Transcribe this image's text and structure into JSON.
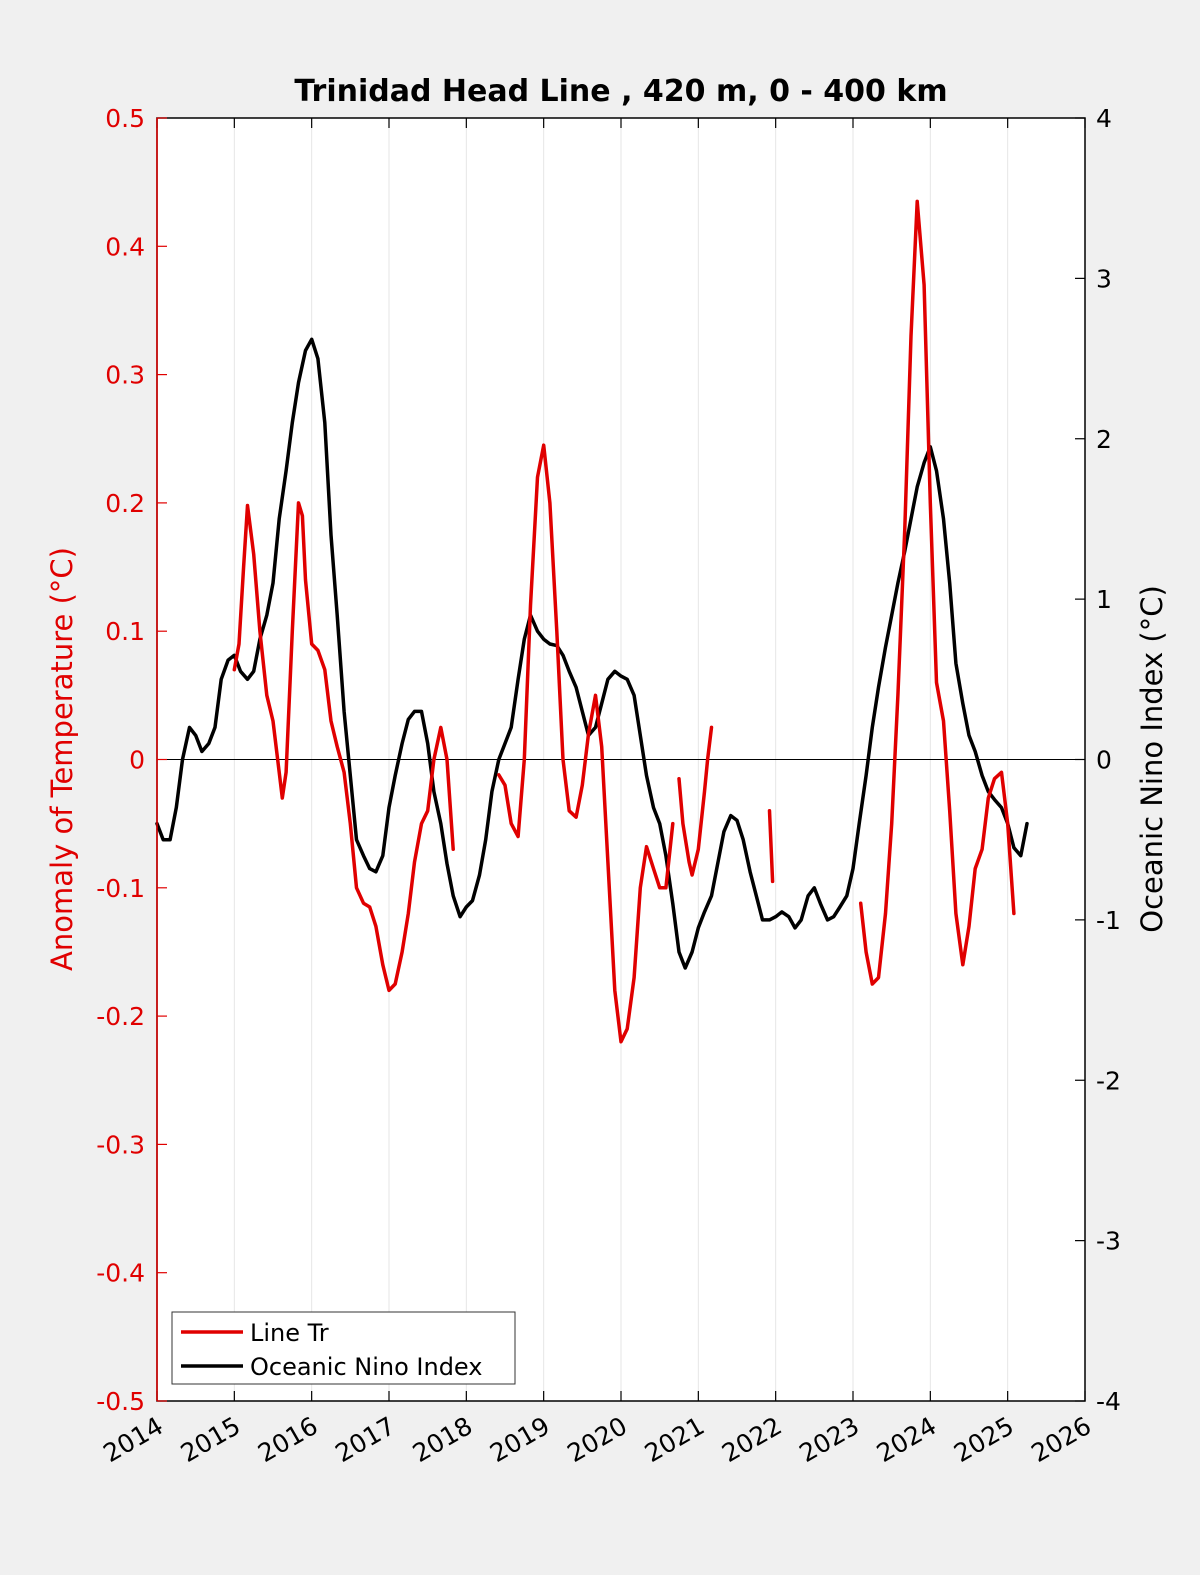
{
  "chart_data": {
    "type": "line",
    "title": "Trinidad Head Line , 420 m, 0 - 400 km",
    "ylabel_left": "Anomaly of Temperature (°C)",
    "ylabel_right": "Oceanic Nino Index (°C)",
    "xlim": [
      2014,
      2026
    ],
    "ylim_left": [
      -0.5,
      0.5
    ],
    "ylim_right": [
      -4,
      4
    ],
    "x_ticks": [
      2014,
      2015,
      2016,
      2017,
      2018,
      2019,
      2020,
      2021,
      2022,
      2023,
      2024,
      2025,
      2026
    ],
    "x_tick_labels": [
      "2014",
      "2015",
      "2016",
      "2017",
      "2018",
      "2019",
      "2020",
      "2021",
      "2022",
      "2023",
      "2024",
      "2025",
      "2026"
    ],
    "y_left_ticks": [
      0.5,
      0.4,
      0.3,
      0.2,
      0.1,
      0,
      -0.1,
      -0.2,
      -0.3,
      -0.4,
      -0.5
    ],
    "y_left_tick_labels": [
      "0.5",
      "0.4",
      "0.3",
      "0.2",
      "0.1",
      "0",
      "-0.1",
      "-0.2",
      "-0.3",
      "-0.4",
      "-0.5"
    ],
    "y_right_ticks": [
      4,
      3,
      2,
      1,
      0,
      -1,
      -2,
      -3,
      -4
    ],
    "y_right_tick_labels": [
      "4",
      "3",
      "2",
      "1",
      "0",
      "-1",
      "-2",
      "-3",
      "-4"
    ],
    "grid": "vertical",
    "zero_line": true,
    "legend_position": "bottom-left",
    "series": [
      {
        "name": "Line Tr",
        "axis": "left",
        "color": "#e00000",
        "segments": [
          [
            [
              2015.0,
              0.07
            ],
            [
              2015.06,
              0.09
            ],
            [
              2015.12,
              0.15
            ],
            [
              2015.17,
              0.198
            ],
            [
              2015.25,
              0.16
            ],
            [
              2015.33,
              0.1
            ],
            [
              2015.42,
              0.05
            ],
            [
              2015.5,
              0.03
            ],
            [
              2015.58,
              -0.01
            ],
            [
              2015.62,
              -0.03
            ],
            [
              2015.67,
              -0.01
            ],
            [
              2015.75,
              0.1
            ],
            [
              2015.83,
              0.2
            ],
            [
              2015.88,
              0.19
            ],
            [
              2015.92,
              0.14
            ],
            [
              2016.0,
              0.09
            ],
            [
              2016.08,
              0.085
            ],
            [
              2016.17,
              0.07
            ],
            [
              2016.25,
              0.03
            ],
            [
              2016.33,
              0.01
            ],
            [
              2016.42,
              -0.01
            ],
            [
              2016.5,
              -0.05
            ],
            [
              2016.58,
              -0.1
            ],
            [
              2016.67,
              -0.112
            ],
            [
              2016.75,
              -0.115
            ],
            [
              2016.83,
              -0.13
            ],
            [
              2016.92,
              -0.16
            ],
            [
              2017.0,
              -0.18
            ],
            [
              2017.08,
              -0.175
            ],
            [
              2017.17,
              -0.15
            ],
            [
              2017.25,
              -0.12
            ],
            [
              2017.33,
              -0.08
            ],
            [
              2017.42,
              -0.05
            ],
            [
              2017.5,
              -0.04
            ],
            [
              2017.58,
              0.0
            ],
            [
              2017.67,
              0.025
            ],
            [
              2017.75,
              0.0
            ],
            [
              2017.83,
              -0.07
            ]
          ],
          [
            [
              2018.42,
              -0.012
            ],
            [
              2018.5,
              -0.02
            ],
            [
              2018.58,
              -0.05
            ],
            [
              2018.67,
              -0.06
            ],
            [
              2018.75,
              0.0
            ],
            [
              2018.83,
              0.12
            ],
            [
              2018.92,
              0.22
            ],
            [
              2019.0,
              0.245
            ],
            [
              2019.08,
              0.2
            ],
            [
              2019.17,
              0.1
            ],
            [
              2019.25,
              0.0
            ],
            [
              2019.33,
              -0.04
            ],
            [
              2019.42,
              -0.045
            ],
            [
              2019.5,
              -0.02
            ],
            [
              2019.58,
              0.02
            ],
            [
              2019.67,
              0.05
            ],
            [
              2019.75,
              0.01
            ],
            [
              2019.83,
              -0.08
            ],
            [
              2019.92,
              -0.18
            ],
            [
              2020.0,
              -0.22
            ],
            [
              2020.08,
              -0.21
            ],
            [
              2020.17,
              -0.17
            ],
            [
              2020.25,
              -0.1
            ],
            [
              2020.33,
              -0.068
            ],
            [
              2020.42,
              -0.085
            ],
            [
              2020.5,
              -0.1
            ],
            [
              2020.58,
              -0.1
            ],
            [
              2020.67,
              -0.05
            ]
          ],
          [
            [
              2020.75,
              -0.015
            ],
            [
              2020.8,
              -0.05
            ],
            [
              2020.88,
              -0.08
            ],
            [
              2020.92,
              -0.09
            ],
            [
              2021.0,
              -0.07
            ],
            [
              2021.08,
              -0.025
            ],
            [
              2021.12,
              0.0
            ],
            [
              2021.17,
              0.025
            ]
          ],
          [
            [
              2021.92,
              -0.04
            ],
            [
              2021.96,
              -0.095
            ]
          ],
          [
            [
              2023.1,
              -0.112
            ],
            [
              2023.17,
              -0.15
            ],
            [
              2023.25,
              -0.175
            ],
            [
              2023.33,
              -0.17
            ],
            [
              2023.42,
              -0.12
            ],
            [
              2023.5,
              -0.05
            ],
            [
              2023.58,
              0.05
            ],
            [
              2023.67,
              0.18
            ],
            [
              2023.75,
              0.33
            ],
            [
              2023.83,
              0.435
            ],
            [
              2023.92,
              0.37
            ],
            [
              2024.0,
              0.2
            ],
            [
              2024.08,
              0.06
            ],
            [
              2024.17,
              0.03
            ],
            [
              2024.25,
              -0.04
            ],
            [
              2024.33,
              -0.12
            ],
            [
              2024.42,
              -0.16
            ],
            [
              2024.5,
              -0.13
            ],
            [
              2024.58,
              -0.085
            ],
            [
              2024.67,
              -0.07
            ],
            [
              2024.75,
              -0.03
            ],
            [
              2024.83,
              -0.015
            ],
            [
              2024.92,
              -0.01
            ],
            [
              2025.0,
              -0.05
            ],
            [
              2025.08,
              -0.12
            ]
          ]
        ]
      },
      {
        "name": "Oceanic Nino Index",
        "axis": "right",
        "color": "#000000",
        "segments": [
          [
            [
              2014.0,
              -0.4
            ],
            [
              2014.08,
              -0.5
            ],
            [
              2014.17,
              -0.5
            ],
            [
              2014.25,
              -0.3
            ],
            [
              2014.33,
              0.0
            ],
            [
              2014.42,
              0.2
            ],
            [
              2014.5,
              0.15
            ],
            [
              2014.58,
              0.05
            ],
            [
              2014.67,
              0.1
            ],
            [
              2014.75,
              0.2
            ],
            [
              2014.83,
              0.5
            ],
            [
              2014.92,
              0.62
            ],
            [
              2015.0,
              0.65
            ],
            [
              2015.08,
              0.55
            ],
            [
              2015.17,
              0.5
            ],
            [
              2015.25,
              0.55
            ],
            [
              2015.33,
              0.75
            ],
            [
              2015.42,
              0.9
            ],
            [
              2015.5,
              1.1
            ],
            [
              2015.58,
              1.5
            ],
            [
              2015.67,
              1.8
            ],
            [
              2015.75,
              2.1
            ],
            [
              2015.83,
              2.35
            ],
            [
              2015.92,
              2.55
            ],
            [
              2016.0,
              2.62
            ],
            [
              2016.08,
              2.5
            ],
            [
              2016.17,
              2.1
            ],
            [
              2016.25,
              1.4
            ],
            [
              2016.33,
              0.9
            ],
            [
              2016.42,
              0.3
            ],
            [
              2016.5,
              -0.1
            ],
            [
              2016.58,
              -0.5
            ],
            [
              2016.67,
              -0.6
            ],
            [
              2016.75,
              -0.68
            ],
            [
              2016.83,
              -0.7
            ],
            [
              2016.92,
              -0.6
            ],
            [
              2017.0,
              -0.3
            ],
            [
              2017.08,
              -0.1
            ],
            [
              2017.17,
              0.1
            ],
            [
              2017.25,
              0.25
            ],
            [
              2017.33,
              0.3
            ],
            [
              2017.42,
              0.3
            ],
            [
              2017.5,
              0.1
            ],
            [
              2017.58,
              -0.2
            ],
            [
              2017.67,
              -0.4
            ],
            [
              2017.75,
              -0.65
            ],
            [
              2017.83,
              -0.85
            ],
            [
              2017.92,
              -0.98
            ],
            [
              2018.0,
              -0.92
            ],
            [
              2018.08,
              -0.88
            ],
            [
              2018.17,
              -0.72
            ],
            [
              2018.25,
              -0.5
            ],
            [
              2018.33,
              -0.2
            ],
            [
              2018.42,
              0.0
            ],
            [
              2018.5,
              0.1
            ],
            [
              2018.58,
              0.2
            ],
            [
              2018.67,
              0.5
            ],
            [
              2018.75,
              0.75
            ],
            [
              2018.83,
              0.9
            ],
            [
              2018.92,
              0.8
            ],
            [
              2019.0,
              0.75
            ],
            [
              2019.08,
              0.72
            ],
            [
              2019.17,
              0.71
            ],
            [
              2019.25,
              0.65
            ],
            [
              2019.33,
              0.55
            ],
            [
              2019.42,
              0.45
            ],
            [
              2019.5,
              0.3
            ],
            [
              2019.58,
              0.15
            ],
            [
              2019.67,
              0.2
            ],
            [
              2019.75,
              0.35
            ],
            [
              2019.83,
              0.5
            ],
            [
              2019.92,
              0.55
            ],
            [
              2020.0,
              0.52
            ],
            [
              2020.08,
              0.5
            ],
            [
              2020.17,
              0.4
            ],
            [
              2020.25,
              0.15
            ],
            [
              2020.33,
              -0.1
            ],
            [
              2020.42,
              -0.3
            ],
            [
              2020.5,
              -0.4
            ],
            [
              2020.58,
              -0.6
            ],
            [
              2020.67,
              -0.9
            ],
            [
              2020.75,
              -1.2
            ],
            [
              2020.83,
              -1.3
            ],
            [
              2020.92,
              -1.2
            ],
            [
              2021.0,
              -1.05
            ],
            [
              2021.08,
              -0.95
            ],
            [
              2021.17,
              -0.85
            ],
            [
              2021.25,
              -0.65
            ],
            [
              2021.33,
              -0.45
            ],
            [
              2021.42,
              -0.35
            ],
            [
              2021.5,
              -0.38
            ],
            [
              2021.58,
              -0.5
            ],
            [
              2021.67,
              -0.7
            ],
            [
              2021.75,
              -0.85
            ],
            [
              2021.83,
              -1.0
            ],
            [
              2021.92,
              -1.0
            ],
            [
              2022.0,
              -0.98
            ],
            [
              2022.08,
              -0.95
            ],
            [
              2022.17,
              -0.98
            ],
            [
              2022.25,
              -1.05
            ],
            [
              2022.33,
              -1.0
            ],
            [
              2022.42,
              -0.85
            ],
            [
              2022.5,
              -0.8
            ],
            [
              2022.58,
              -0.9
            ],
            [
              2022.67,
              -1.0
            ],
            [
              2022.75,
              -0.98
            ],
            [
              2022.83,
              -0.92
            ],
            [
              2022.92,
              -0.85
            ],
            [
              2023.0,
              -0.68
            ],
            [
              2023.08,
              -0.4
            ],
            [
              2023.17,
              -0.1
            ],
            [
              2023.25,
              0.2
            ],
            [
              2023.33,
              0.45
            ],
            [
              2023.42,
              0.7
            ],
            [
              2023.5,
              0.9
            ],
            [
              2023.58,
              1.1
            ],
            [
              2023.67,
              1.3
            ],
            [
              2023.75,
              1.5
            ],
            [
              2023.83,
              1.7
            ],
            [
              2023.92,
              1.85
            ],
            [
              2024.0,
              1.95
            ],
            [
              2024.08,
              1.8
            ],
            [
              2024.17,
              1.5
            ],
            [
              2024.25,
              1.1
            ],
            [
              2024.33,
              0.6
            ],
            [
              2024.42,
              0.35
            ],
            [
              2024.5,
              0.15
            ],
            [
              2024.58,
              0.05
            ],
            [
              2024.67,
              -0.1
            ],
            [
              2024.75,
              -0.2
            ],
            [
              2024.83,
              -0.25
            ],
            [
              2024.92,
              -0.3
            ],
            [
              2025.0,
              -0.4
            ],
            [
              2025.08,
              -0.55
            ],
            [
              2025.17,
              -0.6
            ],
            [
              2025.25,
              -0.4
            ]
          ]
        ]
      }
    ]
  }
}
